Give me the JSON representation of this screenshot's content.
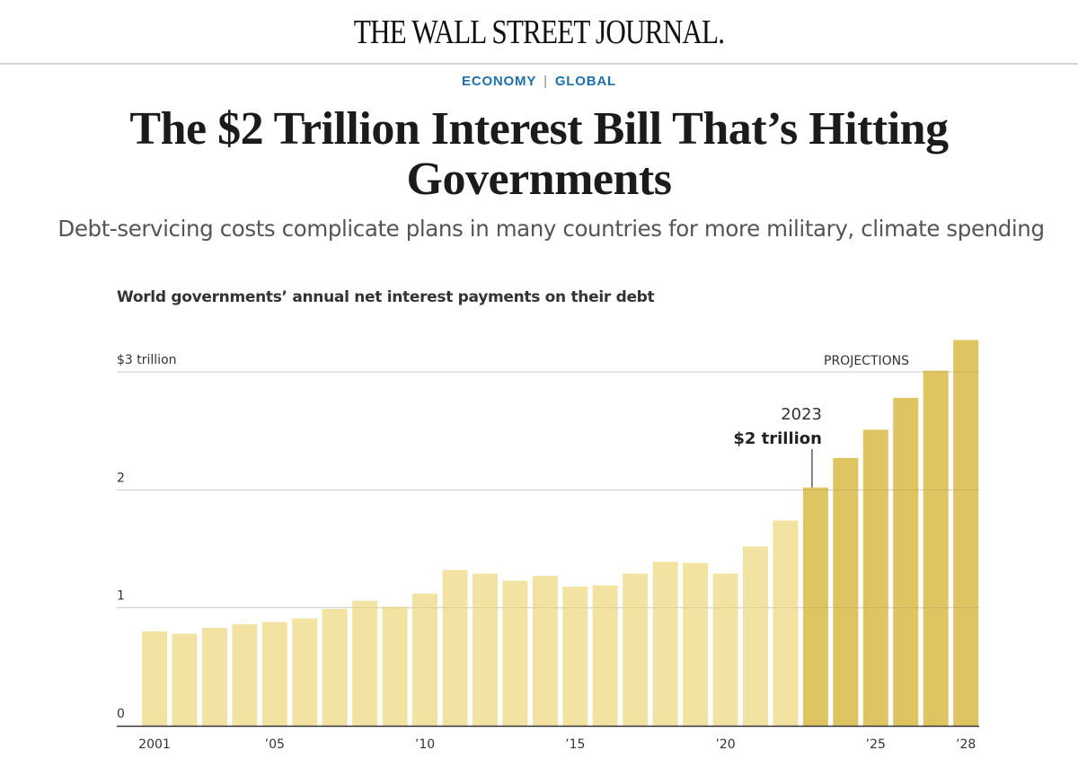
{
  "header": {
    "logo": "THE WALL STREET JOURNAL.",
    "sections": [
      "ECONOMY",
      "GLOBAL"
    ],
    "section_separator": "|"
  },
  "article": {
    "headline": "The $2 Trillion Interest Bill That’s Hitting Governments",
    "dek": "Debt-servicing costs complicate plans in many countries for more military, climate spending"
  },
  "colors": {
    "section_link": "#1f6fa8",
    "bar_actual": "#f2e3a3",
    "bar_projected": "#dfc462",
    "gridline": "#dddddd",
    "baseline": "#333333"
  },
  "chart_data": {
    "type": "bar",
    "title": "World governments’ annual net interest payments on their debt",
    "xlabel": "",
    "ylabel": "",
    "units": "trillion USD",
    "ylim": [
      0,
      3.3
    ],
    "yticks": [
      0,
      1,
      2,
      3
    ],
    "ytick_labels": [
      "0",
      "1",
      "2",
      "$3 trillion"
    ],
    "grid": true,
    "categories": [
      "2001",
      "2002",
      "2003",
      "2004",
      "2005",
      "2006",
      "2007",
      "2008",
      "2009",
      "2010",
      "2011",
      "2012",
      "2013",
      "2014",
      "2015",
      "2016",
      "2017",
      "2018",
      "2019",
      "2020",
      "2021",
      "2022",
      "2023",
      "2024",
      "2025",
      "2026",
      "2027",
      "2028"
    ],
    "xtick_labels": {
      "2001": "2001",
      "2005": "’05",
      "2010": "’10",
      "2015": "’15",
      "2020": "’20",
      "2025": "’25",
      "2028": "’28"
    },
    "series": [
      {
        "name": "Net interest payments",
        "values": [
          0.8,
          0.78,
          0.83,
          0.86,
          0.88,
          0.91,
          0.99,
          1.06,
          1.01,
          1.12,
          1.32,
          1.29,
          1.23,
          1.27,
          1.18,
          1.19,
          1.29,
          1.39,
          1.38,
          1.29,
          1.52,
          1.74,
          2.02,
          2.27,
          2.51,
          2.78,
          3.01,
          3.27
        ]
      }
    ],
    "projection_start": "2023",
    "projection_label": "PROJECTIONS",
    "annotation": {
      "category": "2023",
      "line1": "2023",
      "line2": "$2 trillion"
    }
  }
}
